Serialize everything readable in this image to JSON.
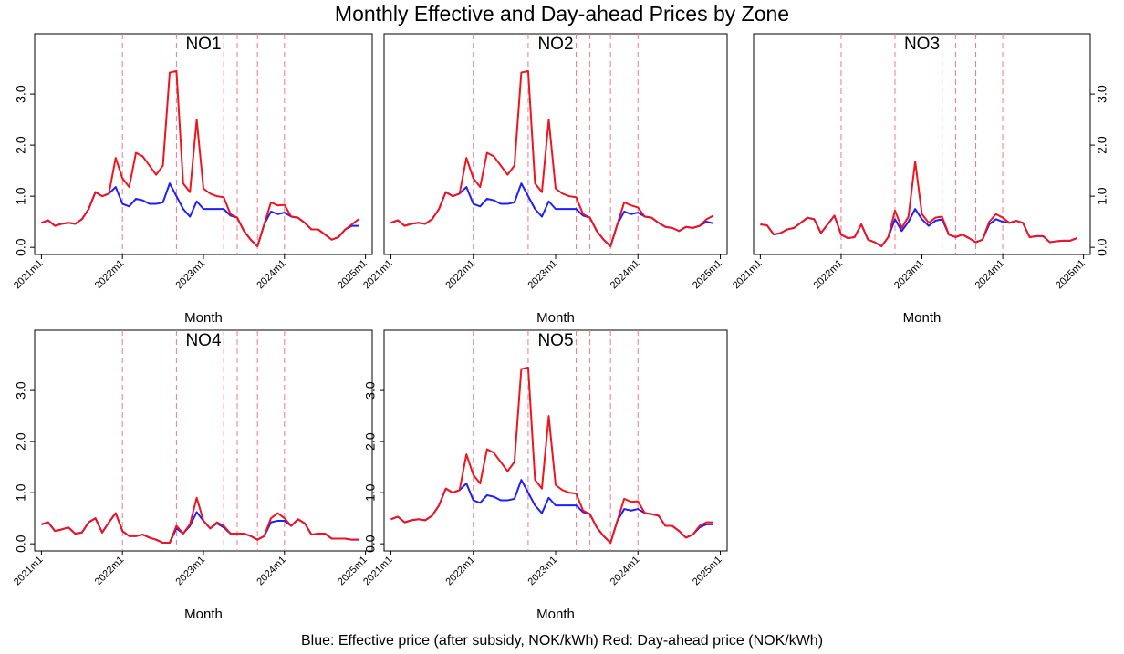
{
  "title": "Monthly Effective and Day-ahead Prices by Zone",
  "note": "Blue: Effective price (after subsidy, NOK/kWh)    Red: Day-ahead price (NOK/kWh)",
  "chart_data": [
    {
      "type": "line",
      "title": "NO1",
      "x_label": "Month",
      "y_axis": "left",
      "x": [
        732,
        733,
        734,
        735,
        736,
        737,
        738,
        739,
        740,
        741,
        742,
        743,
        744,
        745,
        746,
        747,
        748,
        749,
        750,
        751,
        752,
        753,
        754,
        755,
        756,
        757,
        758,
        759,
        760,
        761,
        762,
        763,
        764,
        765,
        766,
        767,
        768,
        769,
        770,
        771,
        772,
        773,
        774,
        775,
        776,
        777,
        778,
        779
      ],
      "xlim": [
        731,
        781
      ],
      "ylim": [
        -0.14,
        4.18
      ],
      "xticks": [
        {
          "value": 732,
          "label": "2021m1"
        },
        {
          "value": 744,
          "label": "2022m1"
        },
        {
          "value": 756,
          "label": "2023m1"
        },
        {
          "value": 768,
          "label": "2024m1"
        },
        {
          "value": 780,
          "label": "2025m1"
        }
      ],
      "yticks": [
        {
          "value": 0,
          "label": "0.0"
        },
        {
          "value": 1,
          "label": "1.0"
        },
        {
          "value": 2,
          "label": "2.0"
        },
        {
          "value": 3,
          "label": "3.0"
        }
      ],
      "reference_lines": {
        "x": [
          744,
          752,
          759,
          761,
          764,
          768
        ],
        "color": "#f07a86"
      },
      "series": [
        {
          "color": "#1f1fff",
          "values": [
            0.48,
            0.53,
            0.42,
            0.46,
            0.48,
            0.46,
            0.55,
            0.75,
            1.08,
            1.0,
            1.05,
            1.18,
            0.85,
            0.8,
            0.95,
            0.92,
            0.85,
            0.85,
            0.88,
            1.25,
            1.0,
            0.75,
            0.6,
            0.9,
            0.75,
            0.75,
            0.75,
            0.75,
            0.62,
            0.58,
            0.32,
            0.15,
            0.02,
            0.45,
            0.7,
            0.65,
            0.68,
            0.6,
            0.58,
            0.48,
            0.35,
            0.35,
            0.25,
            0.15,
            0.2,
            0.35,
            0.42,
            0.42
          ]
        },
        {
          "color": "#f0141e",
          "values": [
            0.48,
            0.53,
            0.42,
            0.46,
            0.48,
            0.46,
            0.55,
            0.75,
            1.08,
            1.0,
            1.05,
            1.75,
            1.35,
            1.18,
            1.85,
            1.78,
            1.6,
            1.42,
            1.6,
            3.42,
            3.45,
            1.25,
            1.08,
            2.5,
            1.15,
            1.05,
            1.0,
            0.98,
            0.65,
            0.58,
            0.32,
            0.15,
            0.02,
            0.45,
            0.88,
            0.82,
            0.83,
            0.6,
            0.58,
            0.48,
            0.35,
            0.35,
            0.25,
            0.15,
            0.2,
            0.35,
            0.45,
            0.55
          ]
        }
      ]
    },
    {
      "type": "line",
      "title": "NO2",
      "x_label": "Month",
      "x": [
        732,
        733,
        734,
        735,
        736,
        737,
        738,
        739,
        740,
        741,
        742,
        743,
        744,
        745,
        746,
        747,
        748,
        749,
        750,
        751,
        752,
        753,
        754,
        755,
        756,
        757,
        758,
        759,
        760,
        761,
        762,
        763,
        764,
        765,
        766,
        767,
        768,
        769,
        770,
        771,
        772,
        773,
        774,
        775,
        776,
        777,
        778,
        779
      ],
      "xlim": [
        731,
        781
      ],
      "ylim": [
        -0.14,
        4.18
      ],
      "xticks": [
        {
          "value": 732,
          "label": "2021m1"
        },
        {
          "value": 744,
          "label": "2022m1"
        },
        {
          "value": 756,
          "label": "2023m1"
        },
        {
          "value": 768,
          "label": "2024m1"
        },
        {
          "value": 780,
          "label": "2025m1"
        }
      ],
      "reference_lines": {
        "x": [
          744,
          752,
          759,
          761,
          764,
          768
        ],
        "color": "#f07a86"
      },
      "series": [
        {
          "color": "#1f1fff",
          "values": [
            0.48,
            0.53,
            0.42,
            0.46,
            0.48,
            0.46,
            0.55,
            0.75,
            1.08,
            1.0,
            1.05,
            1.18,
            0.85,
            0.8,
            0.95,
            0.92,
            0.85,
            0.85,
            0.88,
            1.25,
            1.0,
            0.75,
            0.6,
            0.9,
            0.75,
            0.75,
            0.75,
            0.75,
            0.62,
            0.58,
            0.32,
            0.15,
            0.02,
            0.45,
            0.7,
            0.65,
            0.68,
            0.6,
            0.58,
            0.48,
            0.4,
            0.38,
            0.32,
            0.4,
            0.38,
            0.42,
            0.5,
            0.47
          ]
        },
        {
          "color": "#f0141e",
          "values": [
            0.48,
            0.53,
            0.42,
            0.46,
            0.48,
            0.46,
            0.55,
            0.75,
            1.08,
            1.0,
            1.05,
            1.75,
            1.35,
            1.18,
            1.85,
            1.78,
            1.6,
            1.42,
            1.6,
            3.42,
            3.45,
            1.25,
            1.08,
            2.5,
            1.15,
            1.05,
            1.0,
            0.98,
            0.65,
            0.58,
            0.32,
            0.15,
            0.02,
            0.45,
            0.88,
            0.82,
            0.78,
            0.6,
            0.58,
            0.48,
            0.4,
            0.38,
            0.32,
            0.4,
            0.38,
            0.42,
            0.55,
            0.62
          ]
        }
      ]
    },
    {
      "type": "line",
      "title": "NO3",
      "x_label": "Month",
      "y_axis": "right",
      "x": [
        732,
        733,
        734,
        735,
        736,
        737,
        738,
        739,
        740,
        741,
        742,
        743,
        744,
        745,
        746,
        747,
        748,
        749,
        750,
        751,
        752,
        753,
        754,
        755,
        756,
        757,
        758,
        759,
        760,
        761,
        762,
        763,
        764,
        765,
        766,
        767,
        768,
        769,
        770,
        771,
        772,
        773,
        774,
        775,
        776,
        777,
        778,
        779
      ],
      "xlim": [
        731,
        781
      ],
      "ylim": [
        -0.14,
        4.18
      ],
      "xticks": [
        {
          "value": 732,
          "label": "2021m1"
        },
        {
          "value": 744,
          "label": "2022m1"
        },
        {
          "value": 756,
          "label": "2023m1"
        },
        {
          "value": 768,
          "label": "2024m1"
        },
        {
          "value": 780,
          "label": "2025m1"
        }
      ],
      "yticks": [
        {
          "value": 0,
          "label": "0.0"
        },
        {
          "value": 1,
          "label": "1.0"
        },
        {
          "value": 2,
          "label": "2.0"
        },
        {
          "value": 3,
          "label": "3.0"
        }
      ],
      "reference_lines": {
        "x": [
          744,
          752,
          759,
          761,
          764,
          768
        ],
        "color": "#f07a86"
      },
      "series": [
        {
          "color": "#1f1fff",
          "values": [
            0.45,
            0.43,
            0.25,
            0.28,
            0.35,
            0.38,
            0.48,
            0.58,
            0.55,
            0.28,
            0.45,
            0.62,
            0.25,
            0.18,
            0.2,
            0.45,
            0.15,
            0.1,
            0.02,
            0.2,
            0.55,
            0.32,
            0.5,
            0.75,
            0.55,
            0.42,
            0.52,
            0.55,
            0.25,
            0.2,
            0.25,
            0.18,
            0.1,
            0.15,
            0.45,
            0.55,
            0.5,
            0.48,
            0.52,
            0.48,
            0.2,
            0.22,
            0.22,
            0.1,
            0.12,
            0.13,
            0.13,
            0.18
          ]
        },
        {
          "color": "#f0141e",
          "values": [
            0.45,
            0.43,
            0.25,
            0.28,
            0.35,
            0.38,
            0.48,
            0.58,
            0.55,
            0.28,
            0.45,
            0.62,
            0.25,
            0.18,
            0.2,
            0.45,
            0.15,
            0.1,
            0.02,
            0.2,
            0.72,
            0.38,
            0.6,
            1.68,
            0.65,
            0.48,
            0.58,
            0.6,
            0.25,
            0.2,
            0.25,
            0.18,
            0.1,
            0.15,
            0.5,
            0.65,
            0.58,
            0.48,
            0.52,
            0.48,
            0.2,
            0.22,
            0.22,
            0.1,
            0.12,
            0.13,
            0.13,
            0.18
          ]
        }
      ]
    },
    {
      "type": "line",
      "title": "NO4",
      "x_label": "Month",
      "y_axis": "left",
      "x": [
        732,
        733,
        734,
        735,
        736,
        737,
        738,
        739,
        740,
        741,
        742,
        743,
        744,
        745,
        746,
        747,
        748,
        749,
        750,
        751,
        752,
        753,
        754,
        755,
        756,
        757,
        758,
        759,
        760,
        761,
        762,
        763,
        764,
        765,
        766,
        767,
        768,
        769,
        770,
        771,
        772,
        773,
        774,
        775,
        776,
        777,
        778,
        779
      ],
      "xlim": [
        731,
        781
      ],
      "ylim": [
        -0.14,
        4.18
      ],
      "xticks": [
        {
          "value": 732,
          "label": "2021m1"
        },
        {
          "value": 744,
          "label": "2022m1"
        },
        {
          "value": 756,
          "label": "2023m1"
        },
        {
          "value": 768,
          "label": "2024m1"
        },
        {
          "value": 780,
          "label": "2025m1"
        }
      ],
      "yticks": [
        {
          "value": 0,
          "label": "0.0"
        },
        {
          "value": 1,
          "label": "1.0"
        },
        {
          "value": 2,
          "label": "2.0"
        },
        {
          "value": 3,
          "label": "3.0"
        }
      ],
      "reference_lines": {
        "x": [
          744,
          752,
          759,
          761,
          764,
          768
        ],
        "color": "#f07a86"
      },
      "series": [
        {
          "color": "#1f1fff",
          "values": [
            0.38,
            0.42,
            0.25,
            0.28,
            0.32,
            0.2,
            0.22,
            0.42,
            0.5,
            0.22,
            0.42,
            0.6,
            0.25,
            0.15,
            0.15,
            0.18,
            0.12,
            0.08,
            0.02,
            0.02,
            0.3,
            0.2,
            0.35,
            0.62,
            0.45,
            0.3,
            0.4,
            0.32,
            0.2,
            0.2,
            0.2,
            0.15,
            0.08,
            0.15,
            0.42,
            0.45,
            0.45,
            0.35,
            0.48,
            0.4,
            0.18,
            0.2,
            0.2,
            0.1,
            0.1,
            0.1,
            0.08,
            0.08
          ]
        },
        {
          "color": "#f0141e",
          "values": [
            0.38,
            0.42,
            0.25,
            0.28,
            0.32,
            0.2,
            0.22,
            0.42,
            0.5,
            0.22,
            0.42,
            0.6,
            0.25,
            0.15,
            0.15,
            0.18,
            0.12,
            0.08,
            0.02,
            0.02,
            0.35,
            0.2,
            0.38,
            0.9,
            0.45,
            0.3,
            0.42,
            0.35,
            0.2,
            0.2,
            0.2,
            0.15,
            0.08,
            0.15,
            0.5,
            0.6,
            0.5,
            0.35,
            0.48,
            0.4,
            0.18,
            0.2,
            0.2,
            0.1,
            0.1,
            0.1,
            0.08,
            0.08
          ]
        }
      ]
    },
    {
      "type": "line",
      "title": "NO5",
      "x_label": "Month",
      "y_axis": "left",
      "x": [
        732,
        733,
        734,
        735,
        736,
        737,
        738,
        739,
        740,
        741,
        742,
        743,
        744,
        745,
        746,
        747,
        748,
        749,
        750,
        751,
        752,
        753,
        754,
        755,
        756,
        757,
        758,
        759,
        760,
        761,
        762,
        763,
        764,
        765,
        766,
        767,
        768,
        769,
        770,
        771,
        772,
        773,
        774,
        775,
        776,
        777,
        778,
        779
      ],
      "xlim": [
        731,
        781
      ],
      "ylim": [
        -0.14,
        4.18
      ],
      "xticks": [
        {
          "value": 732,
          "label": "2021m1"
        },
        {
          "value": 744,
          "label": "2022m1"
        },
        {
          "value": 756,
          "label": "2023m1"
        },
        {
          "value": 768,
          "label": "2024m1"
        },
        {
          "value": 780,
          "label": "2025m1"
        }
      ],
      "yticks": [
        {
          "value": 0,
          "label": "0.0"
        },
        {
          "value": 1,
          "label": "1.0"
        },
        {
          "value": 2,
          "label": "2.0"
        },
        {
          "value": 3,
          "label": "3.0"
        }
      ],
      "reference_lines": {
        "x": [
          744,
          752,
          759,
          761,
          764,
          768
        ],
        "color": "#f07a86"
      },
      "series": [
        {
          "color": "#1f1fff",
          "values": [
            0.48,
            0.53,
            0.42,
            0.46,
            0.48,
            0.46,
            0.55,
            0.75,
            1.08,
            1.0,
            1.05,
            1.18,
            0.85,
            0.8,
            0.95,
            0.92,
            0.85,
            0.85,
            0.88,
            1.25,
            1.0,
            0.75,
            0.6,
            0.9,
            0.75,
            0.75,
            0.75,
            0.75,
            0.62,
            0.58,
            0.32,
            0.15,
            0.02,
            0.45,
            0.68,
            0.65,
            0.68,
            0.6,
            0.58,
            0.55,
            0.35,
            0.35,
            0.25,
            0.12,
            0.18,
            0.32,
            0.38,
            0.38
          ]
        },
        {
          "color": "#f0141e",
          "values": [
            0.48,
            0.53,
            0.42,
            0.46,
            0.48,
            0.46,
            0.55,
            0.75,
            1.08,
            1.0,
            1.05,
            1.75,
            1.35,
            1.18,
            1.85,
            1.78,
            1.6,
            1.42,
            1.6,
            3.42,
            3.45,
            1.25,
            1.08,
            2.5,
            1.15,
            1.05,
            1.0,
            0.98,
            0.65,
            0.58,
            0.32,
            0.15,
            0.02,
            0.45,
            0.88,
            0.82,
            0.83,
            0.6,
            0.58,
            0.55,
            0.35,
            0.35,
            0.25,
            0.12,
            0.18,
            0.35,
            0.42,
            0.42
          ]
        }
      ]
    }
  ]
}
